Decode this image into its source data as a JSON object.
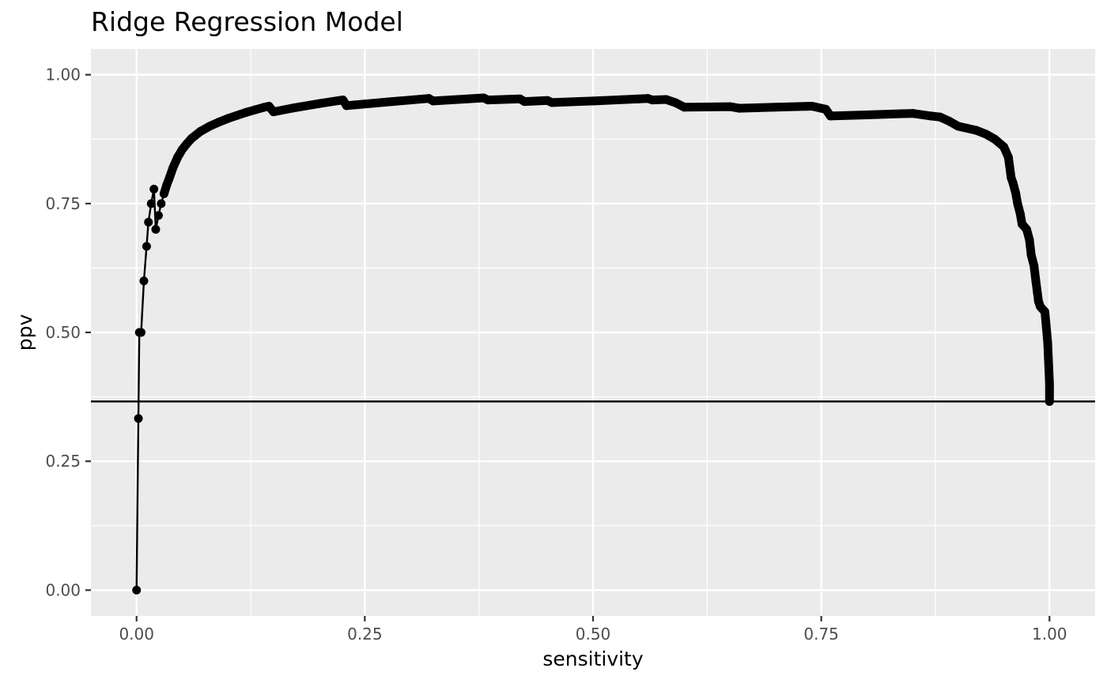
{
  "chart_data": {
    "type": "line",
    "title": "Ridge Regression Model",
    "xlabel": "sensitivity",
    "ylabel": "ppv",
    "xlim": [
      -0.05,
      1.05
    ],
    "ylim": [
      -0.05,
      1.05
    ],
    "x_ticks": [
      0.0,
      0.25,
      0.5,
      0.75,
      1.0
    ],
    "x_tick_labels": [
      "0.00",
      "0.25",
      "0.50",
      "0.75",
      "1.00"
    ],
    "y_ticks": [
      0.0,
      0.25,
      0.5,
      0.75,
      1.0
    ],
    "y_tick_labels": [
      "0.00",
      "0.25",
      "0.50",
      "0.75",
      "1.00"
    ],
    "grid": true,
    "background": "#ebebeb",
    "grid_color": "#ffffff",
    "series_color": "#000000",
    "baseline": 0.366,
    "x": [
      0.0,
      0.002,
      0.003,
      0.005,
      0.008,
      0.011,
      0.013,
      0.016,
      0.019,
      0.021,
      0.024,
      0.027,
      0.03,
      0.033,
      0.036,
      0.04,
      0.045,
      0.05,
      0.055,
      0.06,
      0.07,
      0.08,
      0.09,
      0.1,
      0.11,
      0.12,
      0.13,
      0.14,
      0.145,
      0.15,
      0.17,
      0.2,
      0.226,
      0.23,
      0.28,
      0.32,
      0.325,
      0.38,
      0.385,
      0.42,
      0.425,
      0.45,
      0.455,
      0.5,
      0.55,
      0.56,
      0.565,
      0.58,
      0.59,
      0.6,
      0.65,
      0.66,
      0.7,
      0.74,
      0.75,
      0.755,
      0.76,
      0.8,
      0.85,
      0.87,
      0.88,
      0.89,
      0.9,
      0.92,
      0.93,
      0.94,
      0.95,
      0.955,
      0.958,
      0.96,
      0.963,
      0.965,
      0.968,
      0.97,
      0.975,
      0.978,
      0.98,
      0.983,
      0.985,
      0.988,
      0.99,
      0.995,
      0.998,
      1.0,
      1.0
    ],
    "y": [
      0.0,
      0.333,
      0.5,
      0.5,
      0.6,
      0.667,
      0.714,
      0.75,
      0.778,
      0.7,
      0.727,
      0.75,
      0.769,
      0.786,
      0.8,
      0.82,
      0.84,
      0.855,
      0.866,
      0.876,
      0.89,
      0.9,
      0.908,
      0.915,
      0.921,
      0.927,
      0.932,
      0.937,
      0.939,
      0.928,
      0.935,
      0.944,
      0.951,
      0.94,
      0.948,
      0.954,
      0.949,
      0.955,
      0.951,
      0.953,
      0.948,
      0.95,
      0.946,
      0.949,
      0.953,
      0.954,
      0.951,
      0.952,
      0.946,
      0.937,
      0.938,
      0.935,
      0.937,
      0.939,
      0.935,
      0.933,
      0.92,
      0.922,
      0.925,
      0.92,
      0.918,
      0.91,
      0.9,
      0.892,
      0.885,
      0.875,
      0.86,
      0.84,
      0.8,
      0.79,
      0.77,
      0.75,
      0.73,
      0.71,
      0.7,
      0.68,
      0.65,
      0.63,
      0.6,
      0.56,
      0.55,
      0.54,
      0.48,
      0.4,
      0.366
    ]
  }
}
